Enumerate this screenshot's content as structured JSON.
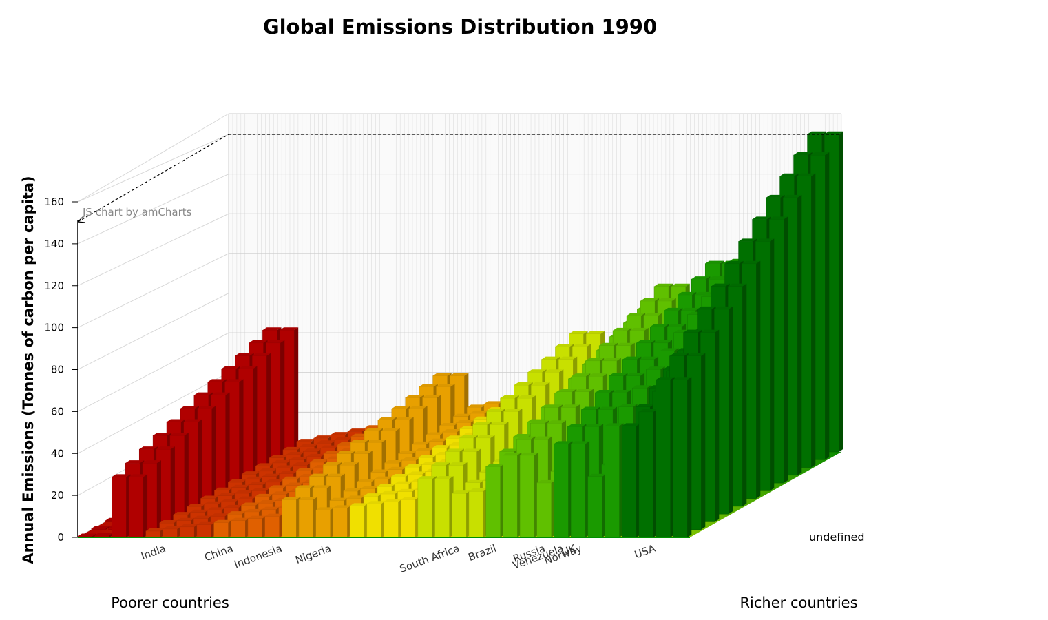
{
  "chart_data": {
    "type": "bar",
    "title": "Global Emissions Distribution 1990",
    "ylabel": "Annual Emissions (Tonnes of carbon per capita)",
    "ylim": [
      0,
      160
    ],
    "y_ticks": [
      "0",
      "20",
      "40",
      "60",
      "80",
      "100",
      "120",
      "140",
      "160"
    ],
    "credit": "JS chart by amCharts",
    "right_label": "undefined",
    "left_note": "Poorer countries",
    "right_note": "Richer countries",
    "country_labels": [
      {
        "name": "India",
        "position": 0.12
      },
      {
        "name": "China",
        "position": 0.23
      },
      {
        "name": "Indonesia",
        "position": 0.31
      },
      {
        "name": "Nigeria",
        "position": 0.39
      },
      {
        "name": "South Africa",
        "position": 0.6
      },
      {
        "name": "Brazil",
        "position": 0.66
      },
      {
        "name": "Russia",
        "position": 0.74
      },
      {
        "name": "Venezuela",
        "position": 0.77
      },
      {
        "name": "UK",
        "position": 0.79
      },
      {
        "name": "Norway",
        "position": 0.8
      },
      {
        "name": "USA",
        "position": 0.92
      }
    ],
    "color_scale": [
      "#b00000",
      "#cc3300",
      "#e06000",
      "#e8a000",
      "#f0e000",
      "#c8e000",
      "#60c000",
      "#1a9a00",
      "#007000"
    ],
    "front_row_values": [
      0.5,
      1,
      1.5,
      2,
      3,
      4,
      5,
      6,
      7,
      8,
      9,
      10,
      11,
      12,
      13,
      14,
      15,
      16,
      17,
      18,
      19,
      20,
      21,
      22,
      23,
      24,
      25,
      26,
      27,
      28,
      29,
      30,
      31,
      33,
      35,
      37
    ],
    "back_row_peaks": [
      {
        "position": 0.08,
        "value": 64
      },
      {
        "position": 0.35,
        "value": 40
      },
      {
        "position": 0.58,
        "value": 62
      },
      {
        "position": 0.63,
        "value": 42
      },
      {
        "position": 0.7,
        "value": 75
      },
      {
        "position": 0.72,
        "value": 87
      },
      {
        "position": 0.82,
        "value": 99
      },
      {
        "position": 0.9,
        "value": 118
      },
      {
        "position": 0.97,
        "value": 133
      },
      {
        "position": 1.0,
        "value": 167
      }
    ]
  }
}
